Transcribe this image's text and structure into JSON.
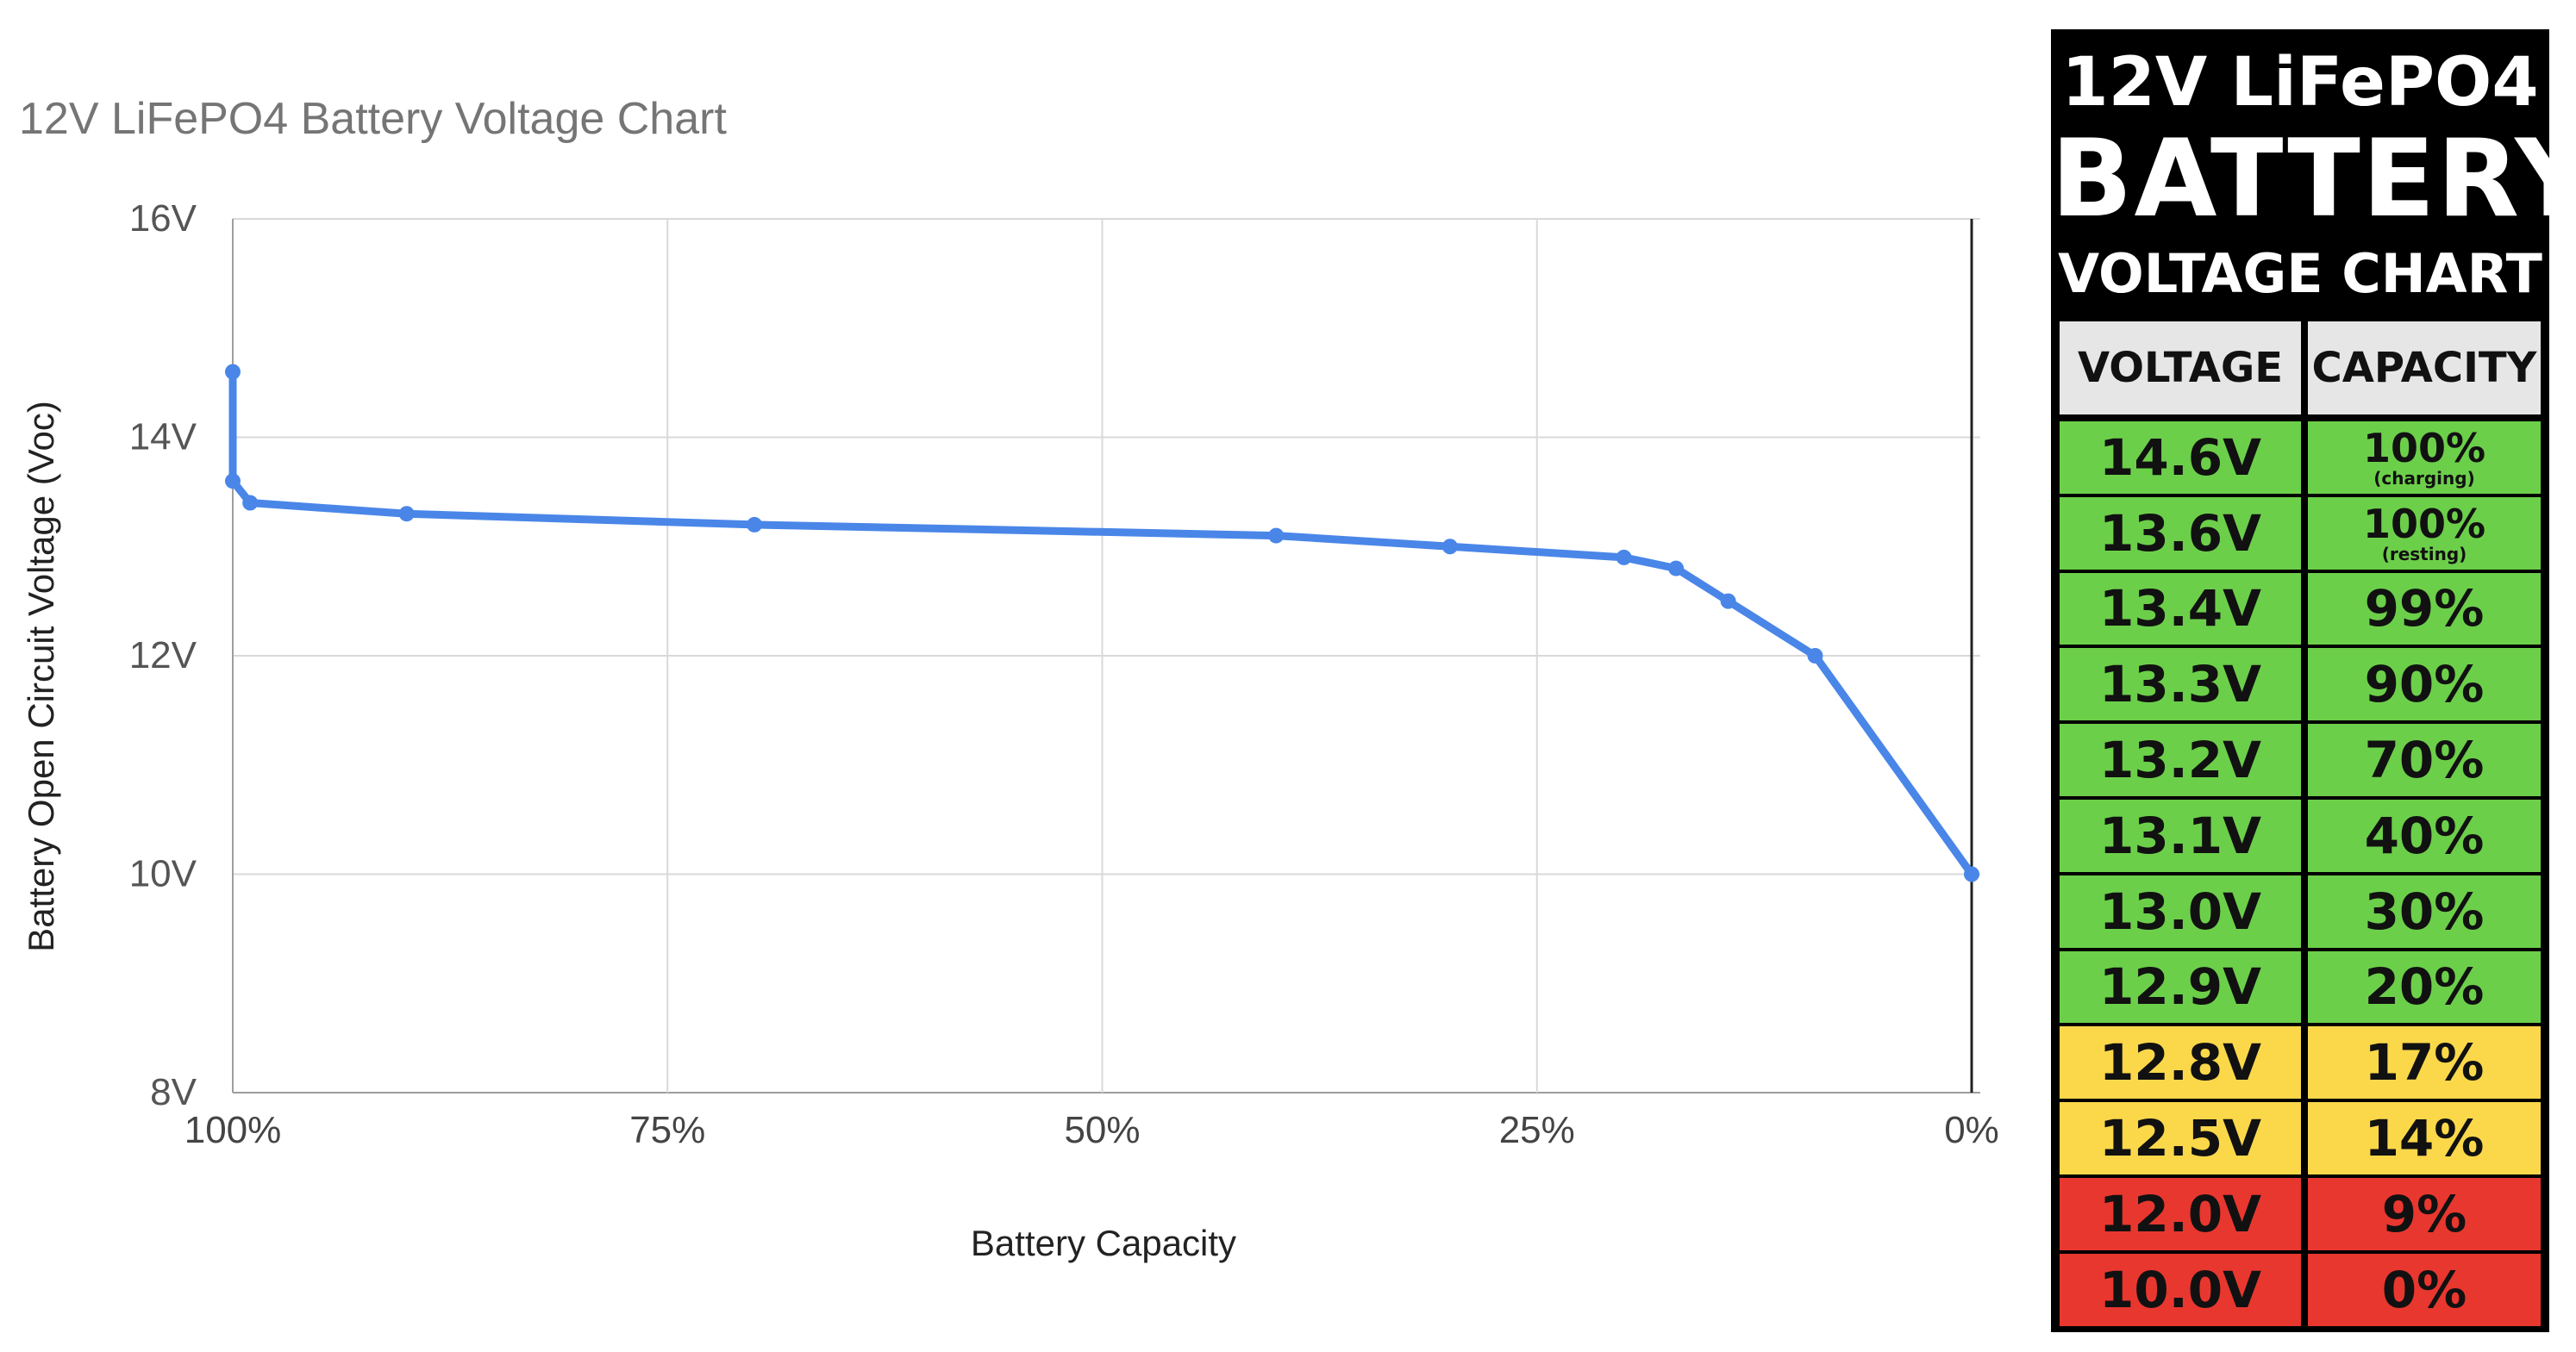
{
  "chart_data": {
    "type": "line",
    "title": "12V LiFePO4 Battery Voltage Chart",
    "xlabel": "Battery Capacity",
    "ylabel": "Battery Open Circuit Voltage (Voc)",
    "x_reversed": true,
    "xlim": [
      100,
      0
    ],
    "ylim": [
      8,
      16
    ],
    "x_ticks": [
      "100%",
      "75%",
      "50%",
      "25%",
      "0%"
    ],
    "y_ticks": [
      "16V",
      "14V",
      "12V",
      "10V",
      "8V"
    ],
    "grid": true,
    "series": [
      {
        "color": "#4a86e8",
        "points": [
          {
            "x": 100,
            "y": 14.6
          },
          {
            "x": 100,
            "y": 13.6
          },
          {
            "x": 99,
            "y": 13.4
          },
          {
            "x": 90,
            "y": 13.3
          },
          {
            "x": 70,
            "y": 13.2
          },
          {
            "x": 40,
            "y": 13.1
          },
          {
            "x": 30,
            "y": 13.0
          },
          {
            "x": 20,
            "y": 12.9
          },
          {
            "x": 17,
            "y": 12.8
          },
          {
            "x": 14,
            "y": 12.5
          },
          {
            "x": 9,
            "y": 12.0
          },
          {
            "x": 0,
            "y": 10.0
          }
        ]
      }
    ]
  },
  "table": {
    "title_line_1": "12V LiFePO4",
    "title_line_2": "BATTERY",
    "title_line_3": "VOLTAGE CHART",
    "header_voltage": "VOLTAGE",
    "header_capacity": "CAPACITY",
    "colors": {
      "green": "#6ccf4a",
      "yellow": "#fbd84a",
      "red": "#e8372f",
      "header": "#e6e6e6"
    },
    "rows": [
      {
        "voltage": "14.6V",
        "capacity": "100%",
        "note": "(charging)",
        "color": "green"
      },
      {
        "voltage": "13.6V",
        "capacity": "100%",
        "note": "(resting)",
        "color": "green"
      },
      {
        "voltage": "13.4V",
        "capacity": "99%",
        "color": "green"
      },
      {
        "voltage": "13.3V",
        "capacity": "90%",
        "color": "green"
      },
      {
        "voltage": "13.2V",
        "capacity": "70%",
        "color": "green"
      },
      {
        "voltage": "13.1V",
        "capacity": "40%",
        "color": "green"
      },
      {
        "voltage": "13.0V",
        "capacity": "30%",
        "color": "green"
      },
      {
        "voltage": "12.9V",
        "capacity": "20%",
        "color": "green"
      },
      {
        "voltage": "12.8V",
        "capacity": "17%",
        "color": "yellow"
      },
      {
        "voltage": "12.5V",
        "capacity": "14%",
        "color": "yellow"
      },
      {
        "voltage": "12.0V",
        "capacity": "9%",
        "color": "red"
      },
      {
        "voltage": "10.0V",
        "capacity": "0%",
        "color": "red"
      }
    ]
  }
}
